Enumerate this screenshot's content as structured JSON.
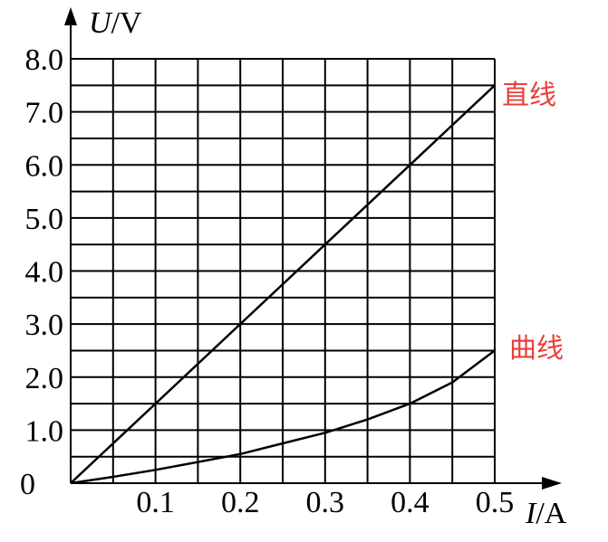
{
  "chart_data": {
    "type": "line",
    "ylabel_var": "U",
    "ylabel_unit": "/V",
    "xlabel_var": "I",
    "xlabel_unit": "/A",
    "origin_label": "0",
    "xlim": [
      0,
      0.5
    ],
    "ylim": [
      0,
      8.0
    ],
    "x_ticks": [
      "0.1",
      "0.2",
      "0.3",
      "0.4",
      "0.5"
    ],
    "y_ticks": [
      "1.0",
      "2.0",
      "3.0",
      "4.0",
      "5.0",
      "6.0",
      "7.0",
      "8.0"
    ],
    "grid": true,
    "label_color": "#e8413a",
    "series": [
      {
        "name": "直线",
        "x": [
          0,
          0.1,
          0.2,
          0.3,
          0.4,
          0.5
        ],
        "y": [
          0,
          1.5,
          3.0,
          4.5,
          6.0,
          7.5
        ]
      },
      {
        "name": "曲线",
        "x": [
          0,
          0.05,
          0.1,
          0.15,
          0.2,
          0.25,
          0.3,
          0.35,
          0.4,
          0.45,
          0.5
        ],
        "y": [
          0,
          0.12,
          0.25,
          0.4,
          0.55,
          0.75,
          0.95,
          1.2,
          1.5,
          1.9,
          2.5
        ]
      }
    ]
  }
}
